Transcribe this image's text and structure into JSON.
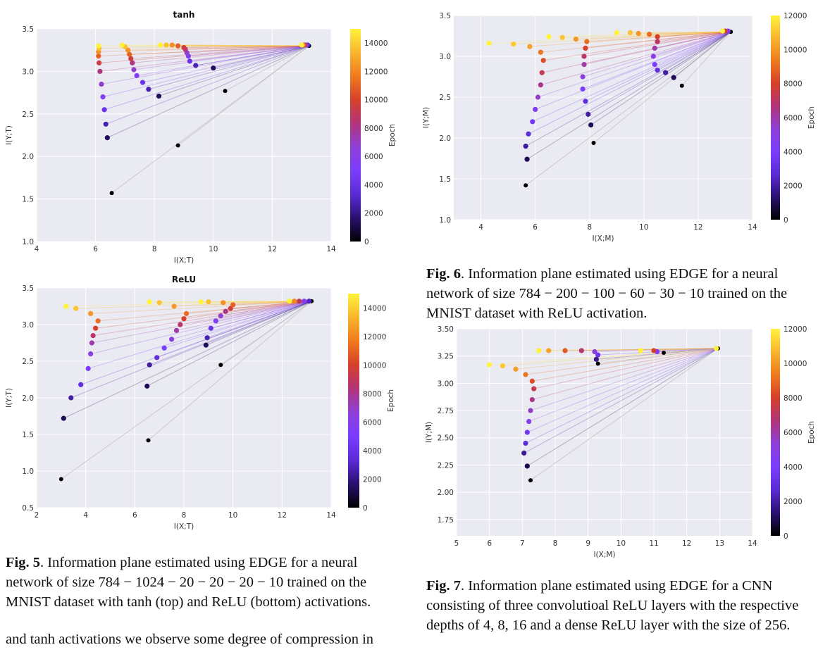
{
  "captions": {
    "fig5": {
      "label": "Fig. 5",
      "text": ". Information plane estimated using EDGE for a neural network of size 784 − 1024 − 20 − 20 − 20 − 10 trained on the MNIST dataset with tanh (top) and ReLU (bottom) activations."
    },
    "fig6": {
      "label": "Fig. 6",
      "text": ". Information plane estimated using EDGE for a neural network of size 784 − 200 − 100 − 60 − 30 − 10 trained on the MNIST dataset with ReLU activation."
    },
    "fig7": {
      "label": "Fig. 7",
      "text": ". Information plane estimated using EDGE for a CNN consisting of three convolutioal ReLU layers with the respective depths of 4, 8, 16 and a dense ReLU layer with the size of 256."
    }
  },
  "body_text": "and tanh activations we observe some degree of compression in",
  "colormap": [
    "#000004",
    "#1f0c48",
    "#550f6d",
    "#88226a",
    "#a83655",
    "#c7543a",
    "#e87a1f",
    "#f6a81a",
    "#fcffa4"
  ],
  "purple_cmap": [
    "#000000",
    "#2a1070",
    "#5b2bd6",
    "#7b3cff",
    "#8e3fd8",
    "#b2347a",
    "#d6402a",
    "#ef7a1e",
    "#f9b52c",
    "#fff23a"
  ],
  "chart_data": [
    {
      "id": "tanh",
      "type": "scatter",
      "title": "tanh",
      "xlabel": "I(X;T)",
      "ylabel": "I(Y;T)",
      "xlim": [
        4,
        14
      ],
      "ylim": [
        1.0,
        3.5
      ],
      "xticks": [
        4,
        6,
        8,
        10,
        12,
        14
      ],
      "yticks": [
        1.0,
        1.5,
        2.0,
        2.5,
        3.0,
        3.5
      ],
      "colorbar": {
        "label": "Epoch",
        "max": 15000,
        "ticks": [
          0,
          2000,
          4000,
          6000,
          8000,
          10000,
          12000,
          14000
        ]
      },
      "grid": true,
      "series": [
        {
          "x": [
            6.55,
            6.4,
            6.35,
            6.3,
            6.25,
            6.2,
            6.15,
            6.12,
            6.1,
            6.1,
            6.12,
            6.1
          ],
          "y": [
            1.57,
            2.22,
            2.38,
            2.55,
            2.7,
            2.85,
            3.0,
            3.1,
            3.18,
            3.23,
            3.27,
            3.3
          ]
        },
        {
          "x": [
            8.8,
            8.15,
            7.8,
            7.6,
            7.4,
            7.3,
            7.25,
            7.2,
            7.15,
            7.1,
            7.0,
            6.9
          ],
          "y": [
            2.13,
            2.71,
            2.79,
            2.87,
            2.95,
            3.02,
            3.1,
            3.15,
            3.2,
            3.25,
            3.29,
            3.31
          ]
        },
        {
          "x": [
            10.4,
            10.0,
            9.4,
            9.2,
            9.15,
            9.1,
            9.05,
            9.0,
            8.8,
            8.6,
            8.4,
            8.2
          ],
          "y": [
            2.77,
            3.04,
            3.07,
            3.12,
            3.18,
            3.22,
            3.26,
            3.28,
            3.3,
            3.31,
            3.31,
            3.31
          ]
        },
        {
          "x": [
            13.25,
            13.2,
            13.15,
            13.1,
            13.05,
            13.0
          ],
          "y": [
            3.3,
            3.31,
            3.31,
            3.31,
            3.31,
            3.31
          ]
        }
      ]
    },
    {
      "id": "relu5",
      "type": "scatter",
      "title": "ReLU",
      "xlabel": "I(X;T)",
      "ylabel": "I(Y;T)",
      "xlim": [
        2,
        14
      ],
      "ylim": [
        0.5,
        3.5
      ],
      "xticks": [
        2,
        4,
        6,
        8,
        10,
        12,
        14
      ],
      "yticks": [
        0.5,
        1.0,
        1.5,
        2.0,
        2.5,
        3.0,
        3.5
      ],
      "colorbar": {
        "label": "Epoch",
        "max": 15000,
        "ticks": [
          0,
          2000,
          4000,
          6000,
          8000,
          10000,
          12000,
          14000
        ]
      },
      "grid": true,
      "series": [
        {
          "x": [
            3.0,
            3.1,
            3.4,
            3.8,
            4.1,
            4.2,
            4.25,
            4.3,
            4.4,
            4.5,
            4.2,
            3.6,
            3.2
          ],
          "y": [
            0.89,
            1.72,
            2.0,
            2.18,
            2.4,
            2.6,
            2.75,
            2.85,
            2.95,
            3.05,
            3.15,
            3.22,
            3.25
          ]
        },
        {
          "x": [
            6.55,
            6.5,
            6.6,
            6.9,
            7.2,
            7.5,
            7.7,
            7.85,
            8.0,
            8.1,
            7.6,
            7.0,
            6.6
          ],
          "y": [
            1.42,
            2.16,
            2.45,
            2.55,
            2.68,
            2.8,
            2.92,
            3.0,
            3.08,
            3.15,
            3.25,
            3.3,
            3.31
          ]
        },
        {
          "x": [
            9.5,
            8.9,
            8.95,
            9.1,
            9.3,
            9.5,
            9.7,
            9.9,
            10.0,
            9.6,
            9.0,
            8.7
          ],
          "y": [
            2.45,
            2.72,
            2.82,
            2.95,
            3.05,
            3.12,
            3.18,
            3.22,
            3.27,
            3.3,
            3.31,
            3.31
          ]
        },
        {
          "x": [
            13.2,
            13.1,
            12.9,
            12.7,
            12.5,
            12.3
          ],
          "y": [
            3.32,
            3.32,
            3.32,
            3.32,
            3.32,
            3.32
          ]
        }
      ]
    },
    {
      "id": "relu6",
      "type": "scatter",
      "title": "",
      "xlabel": "I(X;M)",
      "ylabel": "I(Y;M)",
      "xlim": [
        3,
        14
      ],
      "ylim": [
        1.0,
        3.5
      ],
      "xticks": [
        4,
        6,
        8,
        10,
        12,
        14
      ],
      "yticks": [
        1.0,
        1.5,
        2.0,
        2.5,
        3.0,
        3.5
      ],
      "colorbar": {
        "label": "Epoch",
        "max": 12000,
        "ticks": [
          0,
          2000,
          4000,
          6000,
          8000,
          10000,
          12000
        ]
      },
      "grid": true,
      "series": [
        {
          "x": [
            5.65,
            5.7,
            5.65,
            5.75,
            5.9,
            6.0,
            6.1,
            6.2,
            6.25,
            6.3,
            6.2,
            5.8,
            5.2,
            4.3
          ],
          "y": [
            1.42,
            1.74,
            1.9,
            2.05,
            2.2,
            2.35,
            2.5,
            2.65,
            2.8,
            2.95,
            3.05,
            3.12,
            3.15,
            3.16
          ]
        },
        {
          "x": [
            8.15,
            8.05,
            7.95,
            7.85,
            7.75,
            7.75,
            7.8,
            7.8,
            7.85,
            7.9,
            7.5,
            7.0,
            6.5
          ],
          "y": [
            1.94,
            2.16,
            2.29,
            2.45,
            2.6,
            2.75,
            2.9,
            3.0,
            3.1,
            3.18,
            3.21,
            3.23,
            3.24
          ]
        },
        {
          "x": [
            11.4,
            11.1,
            10.8,
            10.5,
            10.4,
            10.35,
            10.4,
            10.5,
            10.5,
            10.2,
            9.8,
            9.5,
            9.0
          ],
          "y": [
            2.64,
            2.74,
            2.8,
            2.83,
            2.9,
            3.0,
            3.1,
            3.18,
            3.24,
            3.27,
            3.28,
            3.29,
            3.29
          ]
        },
        {
          "x": [
            13.2,
            13.1,
            13.0,
            12.9
          ],
          "y": [
            3.3,
            3.31,
            3.31,
            3.31
          ]
        }
      ]
    },
    {
      "id": "cnn7",
      "type": "scatter",
      "title": "",
      "xlabel": "I(X;M)",
      "ylabel": "I(Y;M)",
      "xlim": [
        5,
        14
      ],
      "ylim": [
        1.6,
        3.5
      ],
      "xticks": [
        5,
        6,
        7,
        8,
        9,
        10,
        11,
        12,
        13,
        14
      ],
      "yticks": [
        1.75,
        2.0,
        2.25,
        2.5,
        2.75,
        3.0,
        3.25,
        3.5
      ],
      "colorbar": {
        "label": "Epoch",
        "max": 12000,
        "ticks": [
          0,
          2000,
          4000,
          6000,
          8000,
          10000,
          12000
        ]
      },
      "grid": true,
      "series": [
        {
          "x": [
            7.25,
            7.15,
            7.05,
            7.1,
            7.15,
            7.2,
            7.25,
            7.3,
            7.35,
            7.3,
            7.1,
            6.8,
            6.4,
            6.0
          ],
          "y": [
            2.11,
            2.24,
            2.36,
            2.45,
            2.55,
            2.65,
            2.75,
            2.85,
            2.95,
            3.02,
            3.08,
            3.13,
            3.16,
            3.17
          ]
        },
        {
          "x": [
            9.3,
            9.25,
            9.3,
            9.2,
            8.8,
            8.3,
            7.8,
            7.5
          ],
          "y": [
            3.18,
            3.22,
            3.26,
            3.29,
            3.3,
            3.3,
            3.3,
            3.3
          ]
        },
        {
          "x": [
            11.3,
            11.1,
            11.0,
            10.6
          ],
          "y": [
            3.28,
            3.29,
            3.3,
            3.3
          ]
        },
        {
          "x": [
            12.95,
            12.9
          ],
          "y": [
            3.32,
            3.32
          ]
        }
      ]
    }
  ]
}
